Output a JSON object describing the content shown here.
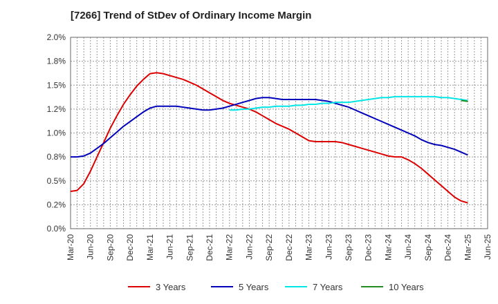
{
  "chart_data": {
    "type": "line",
    "title": "[7266]  Trend of StDev of Ordinary Income Margin",
    "xlabel": "",
    "ylabel": "",
    "ylim": [
      0,
      2.0
    ],
    "yticks": [
      "0.0%",
      "0.2%",
      "0.5%",
      "0.8%",
      "1.0%",
      "1.2%",
      "1.5%",
      "1.8%",
      "2.0%"
    ],
    "xticks": [
      "Mar-20",
      "Jun-20",
      "Sep-20",
      "Dec-20",
      "Mar-21",
      "Jun-21",
      "Sep-21",
      "Dec-21",
      "Mar-22",
      "Jun-22",
      "Sep-22",
      "Dec-22",
      "Mar-23",
      "Jun-23",
      "Sep-23",
      "Dec-23",
      "Mar-24",
      "Jun-24",
      "Sep-24",
      "Dec-24",
      "Mar-25",
      "Jun-25"
    ],
    "grid": true,
    "legend_position": "bottom",
    "series": [
      {
        "name": "3 Years",
        "color": "#dd0000",
        "x": [
          "Mar-20",
          "Apr-20",
          "May-20",
          "Jun-20",
          "Jul-20",
          "Aug-20",
          "Sep-20",
          "Oct-20",
          "Nov-20",
          "Dec-20",
          "Jan-21",
          "Feb-21",
          "Mar-21",
          "Apr-21",
          "May-21",
          "Jun-21",
          "Jul-21",
          "Aug-21",
          "Sep-21",
          "Oct-21",
          "Nov-21",
          "Dec-21",
          "Jan-22",
          "Feb-22",
          "Mar-22",
          "Apr-22",
          "May-22",
          "Jun-22",
          "Jul-22",
          "Aug-22",
          "Sep-22",
          "Oct-22",
          "Nov-22",
          "Dec-22",
          "Jan-23",
          "Feb-23",
          "Mar-23",
          "Apr-23",
          "May-23",
          "Jun-23",
          "Jul-23",
          "Aug-23",
          "Sep-23",
          "Oct-23",
          "Nov-23",
          "Dec-23",
          "Jan-24",
          "Feb-24",
          "Mar-24",
          "Apr-24",
          "May-24",
          "Jun-24",
          "Jul-24",
          "Aug-24",
          "Sep-24",
          "Oct-24",
          "Nov-24",
          "Dec-24",
          "Jan-25",
          "Feb-25",
          "Mar-25"
        ],
        "values": [
          0.39,
          0.4,
          0.47,
          0.6,
          0.75,
          0.9,
          1.05,
          1.18,
          1.3,
          1.4,
          1.49,
          1.56,
          1.62,
          1.63,
          1.62,
          1.6,
          1.58,
          1.56,
          1.53,
          1.5,
          1.46,
          1.42,
          1.38,
          1.34,
          1.31,
          1.29,
          1.27,
          1.25,
          1.22,
          1.18,
          1.14,
          1.1,
          1.07,
          1.04,
          1.0,
          0.96,
          0.92,
          0.91,
          0.91,
          0.91,
          0.91,
          0.9,
          0.88,
          0.86,
          0.84,
          0.82,
          0.8,
          0.78,
          0.76,
          0.75,
          0.75,
          0.72,
          0.68,
          0.63,
          0.57,
          0.51,
          0.45,
          0.39,
          0.33,
          0.29,
          0.27
        ]
      },
      {
        "name": "5 Years",
        "color": "#0000bb",
        "x": [
          "Mar-20",
          "Apr-20",
          "May-20",
          "Jun-20",
          "Jul-20",
          "Aug-20",
          "Sep-20",
          "Oct-20",
          "Nov-20",
          "Dec-20",
          "Jan-21",
          "Feb-21",
          "Mar-21",
          "Apr-21",
          "May-21",
          "Jun-21",
          "Jul-21",
          "Aug-21",
          "Sep-21",
          "Oct-21",
          "Nov-21",
          "Dec-21",
          "Jan-22",
          "Feb-22",
          "Mar-22",
          "Apr-22",
          "May-22",
          "Jun-22",
          "Jul-22",
          "Aug-22",
          "Sep-22",
          "Oct-22",
          "Nov-22",
          "Dec-22",
          "Jan-23",
          "Feb-23",
          "Mar-23",
          "Apr-23",
          "May-23",
          "Jun-23",
          "Jul-23",
          "Aug-23",
          "Sep-23",
          "Oct-23",
          "Nov-23",
          "Dec-23",
          "Jan-24",
          "Feb-24",
          "Mar-24",
          "Apr-24",
          "May-24",
          "Jun-24",
          "Jul-24",
          "Aug-24",
          "Sep-24",
          "Oct-24",
          "Nov-24",
          "Dec-24",
          "Jan-25",
          "Feb-25",
          "Mar-25"
        ],
        "values": [
          0.75,
          0.75,
          0.76,
          0.79,
          0.84,
          0.89,
          0.95,
          1.01,
          1.07,
          1.12,
          1.17,
          1.22,
          1.26,
          1.28,
          1.28,
          1.28,
          1.28,
          1.27,
          1.26,
          1.25,
          1.24,
          1.24,
          1.25,
          1.26,
          1.28,
          1.3,
          1.32,
          1.34,
          1.36,
          1.37,
          1.37,
          1.36,
          1.35,
          1.35,
          1.35,
          1.35,
          1.35,
          1.35,
          1.34,
          1.33,
          1.31,
          1.29,
          1.27,
          1.24,
          1.21,
          1.18,
          1.15,
          1.12,
          1.09,
          1.06,
          1.03,
          1.0,
          0.97,
          0.93,
          0.9,
          0.88,
          0.87,
          0.85,
          0.83,
          0.8,
          0.77
        ]
      },
      {
        "name": "7 Years",
        "color": "#00e5e5",
        "x": [
          "Mar-22",
          "Apr-22",
          "May-22",
          "Jun-22",
          "Jul-22",
          "Aug-22",
          "Sep-22",
          "Oct-22",
          "Nov-22",
          "Dec-22",
          "Jan-23",
          "Feb-23",
          "Mar-23",
          "Apr-23",
          "May-23",
          "Jun-23",
          "Jul-23",
          "Aug-23",
          "Sep-23",
          "Oct-23",
          "Nov-23",
          "Dec-23",
          "Jan-24",
          "Feb-24",
          "Mar-24",
          "Apr-24",
          "May-24",
          "Jun-24",
          "Jul-24",
          "Aug-24",
          "Sep-24",
          "Oct-24",
          "Nov-24",
          "Dec-24",
          "Jan-25",
          "Feb-25",
          "Mar-25"
        ],
        "values": [
          1.24,
          1.24,
          1.25,
          1.25,
          1.26,
          1.27,
          1.27,
          1.28,
          1.28,
          1.28,
          1.29,
          1.29,
          1.3,
          1.3,
          1.31,
          1.31,
          1.32,
          1.32,
          1.32,
          1.33,
          1.34,
          1.35,
          1.36,
          1.37,
          1.37,
          1.38,
          1.38,
          1.38,
          1.38,
          1.38,
          1.38,
          1.38,
          1.37,
          1.37,
          1.36,
          1.35,
          1.34
        ]
      },
      {
        "name": "10 Years",
        "color": "#228b22",
        "x": [
          "Feb-25",
          "Mar-25"
        ],
        "values": [
          1.34,
          1.33
        ]
      }
    ]
  }
}
